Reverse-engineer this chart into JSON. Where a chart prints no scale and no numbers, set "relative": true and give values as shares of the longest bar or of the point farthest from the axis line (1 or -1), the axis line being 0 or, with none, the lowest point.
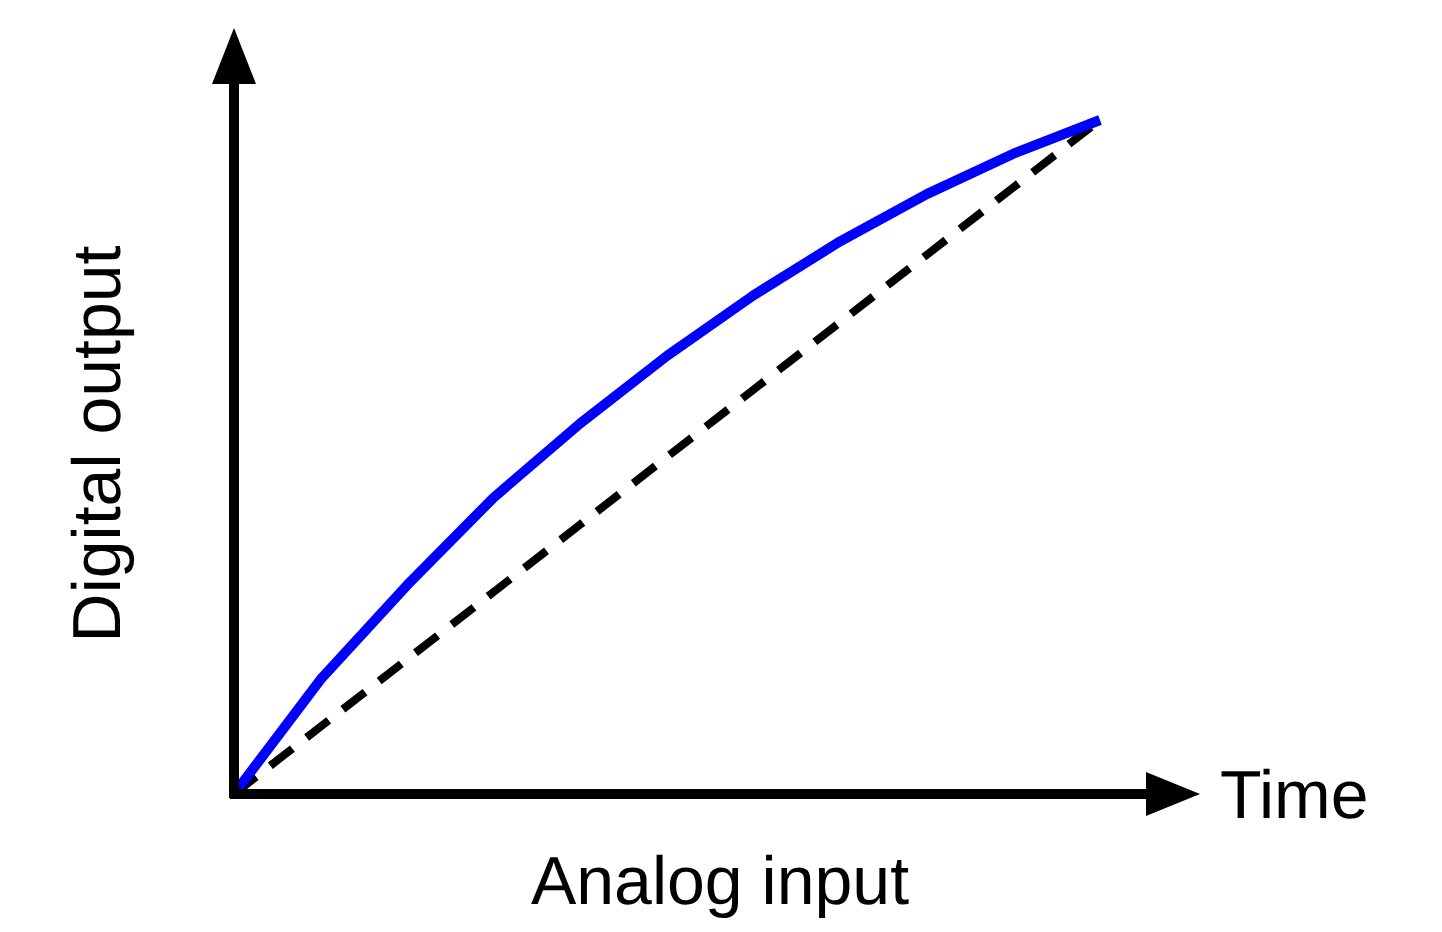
{
  "chart_data": {
    "type": "line",
    "relative": true,
    "xlabel": "Analog input",
    "ylabel": "Digital output",
    "annotations": [
      "Time"
    ],
    "categories": [
      null,
      null,
      null,
      null,
      null,
      null,
      null,
      null,
      null,
      null,
      null
    ],
    "series": [
      {
        "color": "#0000ff",
        "line_style": "solid",
        "values": [
          0,
          0.17,
          0.31,
          0.44,
          0.55,
          0.65,
          0.74,
          0.82,
          0.89,
          0.95,
          1
        ]
      },
      {
        "color": "#000000",
        "line_style": "dashed",
        "values": [
          0,
          0.1,
          0.2,
          0.3,
          0.4,
          0.5,
          0.6,
          0.7,
          0.8,
          0.9,
          1
        ]
      }
    ]
  }
}
